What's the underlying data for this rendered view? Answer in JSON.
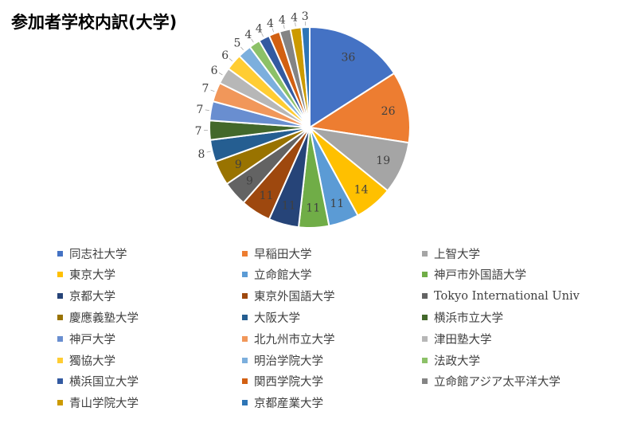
{
  "chart_data": {
    "type": "pie",
    "title": "参加者学校内訳(大学)",
    "categories": [
      "同志社大学",
      "早稲田大学",
      "上智大学",
      "東京大学",
      "立命館大学",
      "神戸市外国語大学",
      "京都大学",
      "東京外国語大学",
      "Tokyo International Univ",
      "慶應義塾大学",
      "大阪大学",
      "横浜市立大学",
      "神戸大学",
      "北九州市立大学",
      "津田塾大学",
      "獨協大学",
      "明治学院大学",
      "法政大学",
      "横浜国立大学",
      "関西学院大学",
      "立命館アジア太平洋大学",
      "青山学院大学",
      "京都産業大学"
    ],
    "values": [
      36,
      26,
      19,
      14,
      11,
      11,
      11,
      11,
      9,
      9,
      8,
      7,
      7,
      7,
      6,
      6,
      5,
      4,
      4,
      4,
      4,
      4,
      3
    ],
    "colors": [
      "#4472C4",
      "#ED7D31",
      "#A5A5A5",
      "#FFC000",
      "#5B9BD5",
      "#70AD47",
      "#264478",
      "#9E480E",
      "#636363",
      "#997300",
      "#255E91",
      "#43682B",
      "#698ED0",
      "#F1975A",
      "#B7B7B7",
      "#FFCD33",
      "#7CAFDD",
      "#8CC168",
      "#335AA1",
      "#D26012",
      "#848484",
      "#CC9A00",
      "#2E75B6"
    ],
    "legend_position": "bottom"
  }
}
